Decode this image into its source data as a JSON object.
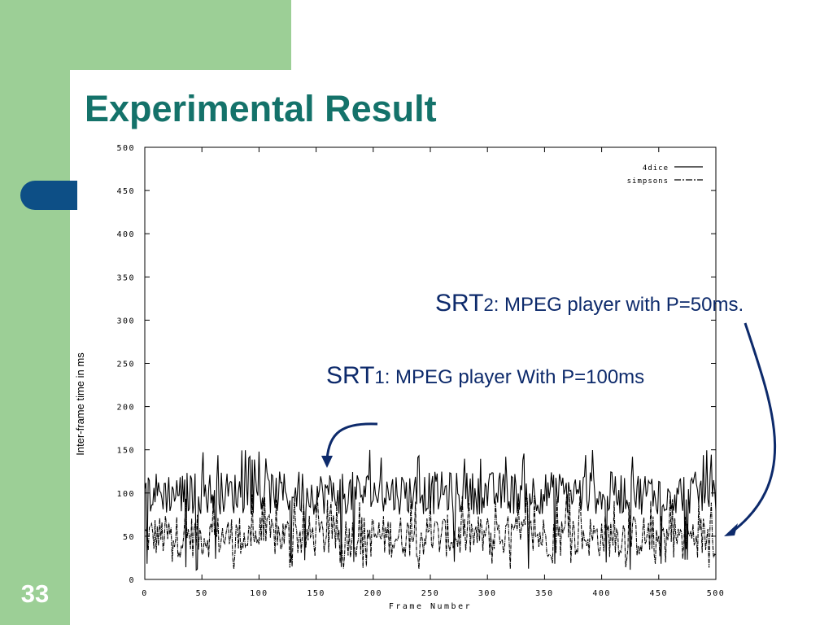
{
  "slide": {
    "title": "Experimental Result",
    "page_number": "33",
    "colors": {
      "green": "#9ccf96",
      "navy": "#0d4f86",
      "title": "#14726a",
      "annotation": "#0d2a6b"
    }
  },
  "annotations": {
    "srt2": {
      "prefix": "SRT",
      "sub": "2",
      "text": ": MPEG player with P=50ms."
    },
    "srt1": {
      "prefix": "SRT",
      "sub": "1",
      "text": ": MPEG player With P=100ms"
    }
  },
  "chart_data": {
    "type": "line",
    "title": "",
    "xlabel": "Frame Number",
    "ylabel": "Inter-frame time in ms",
    "xlim": [
      0,
      500
    ],
    "ylim": [
      0,
      500
    ],
    "x_ticks": [
      0,
      50,
      100,
      150,
      200,
      250,
      300,
      350,
      400,
      450,
      500
    ],
    "y_ticks": [
      0,
      50,
      100,
      150,
      200,
      250,
      300,
      350,
      400,
      450,
      500
    ],
    "grid": false,
    "legend_position": "top-right",
    "series": [
      {
        "name": "4dice",
        "style": "solid",
        "mean": 100,
        "typical_range": [
          75,
          125
        ],
        "max": 150,
        "min": 10,
        "x_range": [
          0,
          500
        ]
      },
      {
        "name": "simpsons",
        "style": "dash-dot",
        "mean": 50,
        "typical_range": [
          30,
          80
        ],
        "max": 100,
        "min": 10,
        "x_range": [
          0,
          500
        ]
      }
    ]
  }
}
